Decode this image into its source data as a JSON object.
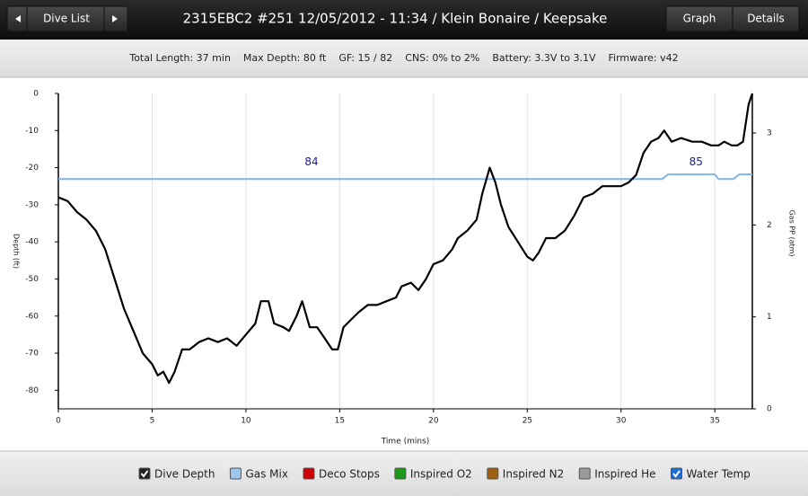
{
  "header": {
    "nav_label": "Dive List",
    "title": "2315EBC2 #251 12/05/2012 - 11:34  / Klein Bonaire / Keepsake",
    "tabs": [
      "Graph",
      "Details"
    ]
  },
  "stats": [
    "Total Length: 37 min",
    "Max Depth: 80 ft",
    "GF: 15 / 82",
    "CNS: 0% to 2%",
    "Battery: 3.3V to 3.1V",
    "Firmware: v42"
  ],
  "chart_data": {
    "type": "line",
    "x_label": "Time (mins)",
    "y_label": "Depth (ft)",
    "y2_label": "Gas PP (atm)",
    "xlim": [
      0,
      37
    ],
    "xticks": [
      0,
      5,
      10,
      15,
      20,
      25,
      30,
      35
    ],
    "ylim": [
      -85,
      0
    ],
    "yticks": [
      0,
      -10,
      -20,
      -30,
      -40,
      -50,
      -60,
      -70,
      -80
    ],
    "y2lim": [
      0,
      3.43
    ],
    "y2ticks": [
      0,
      1,
      2,
      3
    ],
    "grid": true,
    "series": [
      {
        "name": "Dive Depth",
        "color": "#000000",
        "x": [
          0,
          0.5,
          1,
          1.5,
          2,
          2.5,
          3,
          3.5,
          4,
          4.5,
          5,
          5.3,
          5.6,
          5.9,
          6.2,
          6.6,
          7,
          7.5,
          8,
          8.5,
          9,
          9.5,
          10,
          10.5,
          10.8,
          11.2,
          11.5,
          12,
          12.3,
          12.7,
          13,
          13.4,
          13.8,
          14.2,
          14.6,
          14.9,
          15.2,
          15.6,
          16,
          16.5,
          17,
          17.5,
          18,
          18.3,
          18.8,
          19.2,
          19.6,
          20,
          20.5,
          21,
          21.3,
          21.8,
          22.3,
          22.6,
          23,
          23.3,
          23.6,
          24,
          24.5,
          25,
          25.3,
          25.6,
          26,
          26.5,
          27,
          27.5,
          28,
          28.5,
          29,
          29.5,
          30,
          30.4,
          30.8,
          31.2,
          31.6,
          32,
          32.3,
          32.7,
          33.2,
          33.8,
          34.3,
          34.8,
          35.2,
          35.5,
          35.9,
          36.2,
          36.5,
          36.8,
          37
        ],
        "values": [
          -28,
          -29,
          -32,
          -34,
          -37,
          -42,
          -50,
          -58,
          -64,
          -70,
          -73,
          -76,
          -75,
          -78,
          -75,
          -69,
          -69,
          -67,
          -66,
          -67,
          -66,
          -68,
          -65,
          -62,
          -56,
          -56,
          -62,
          -63,
          -64,
          -60,
          -56,
          -63,
          -63,
          -66,
          -69,
          -69,
          -63,
          -61,
          -59,
          -57,
          -57,
          -56,
          -55,
          -52,
          -51,
          -53,
          -50,
          -46,
          -45,
          -42,
          -39,
          -37,
          -34,
          -27,
          -20,
          -24,
          -30,
          -36,
          -40,
          -44,
          -45,
          -43,
          -39,
          -39,
          -37,
          -33,
          -28,
          -27,
          -25,
          -25,
          -25,
          -24,
          -22,
          -16,
          -13,
          -12,
          -10,
          -13,
          -12,
          -13,
          -13,
          -14,
          -14,
          -13,
          -14,
          -14,
          -13,
          -3,
          0
        ]
      },
      {
        "name": "Gas Mix",
        "color": "#7fb4e6",
        "axis": "y2",
        "x": [
          0,
          32.2,
          32.5,
          35,
          35.2,
          36,
          36.3,
          37
        ],
        "values": [
          2.5,
          2.5,
          2.55,
          2.55,
          2.5,
          2.5,
          2.55,
          2.55
        ]
      }
    ],
    "annotations": [
      {
        "text": "84",
        "x": 13.5,
        "y": 2.68
      },
      {
        "text": "85",
        "x": 34,
        "y": 2.68
      }
    ]
  },
  "legend": [
    {
      "name": "Dive Depth",
      "color": "#222222",
      "checked": true
    },
    {
      "name": "Gas Mix",
      "color": "#9cc8ee",
      "checked": false
    },
    {
      "name": "Deco Stops",
      "color": "#d00000",
      "checked": false
    },
    {
      "name": "Inspired O2",
      "color": "#1a9a1a",
      "checked": false
    },
    {
      "name": "Inspired N2",
      "color": "#a06010",
      "checked": false
    },
    {
      "name": "Inspired He",
      "color": "#999999",
      "checked": false
    },
    {
      "name": "Water Temp",
      "color": "#1a6ed8",
      "checked": true
    }
  ]
}
